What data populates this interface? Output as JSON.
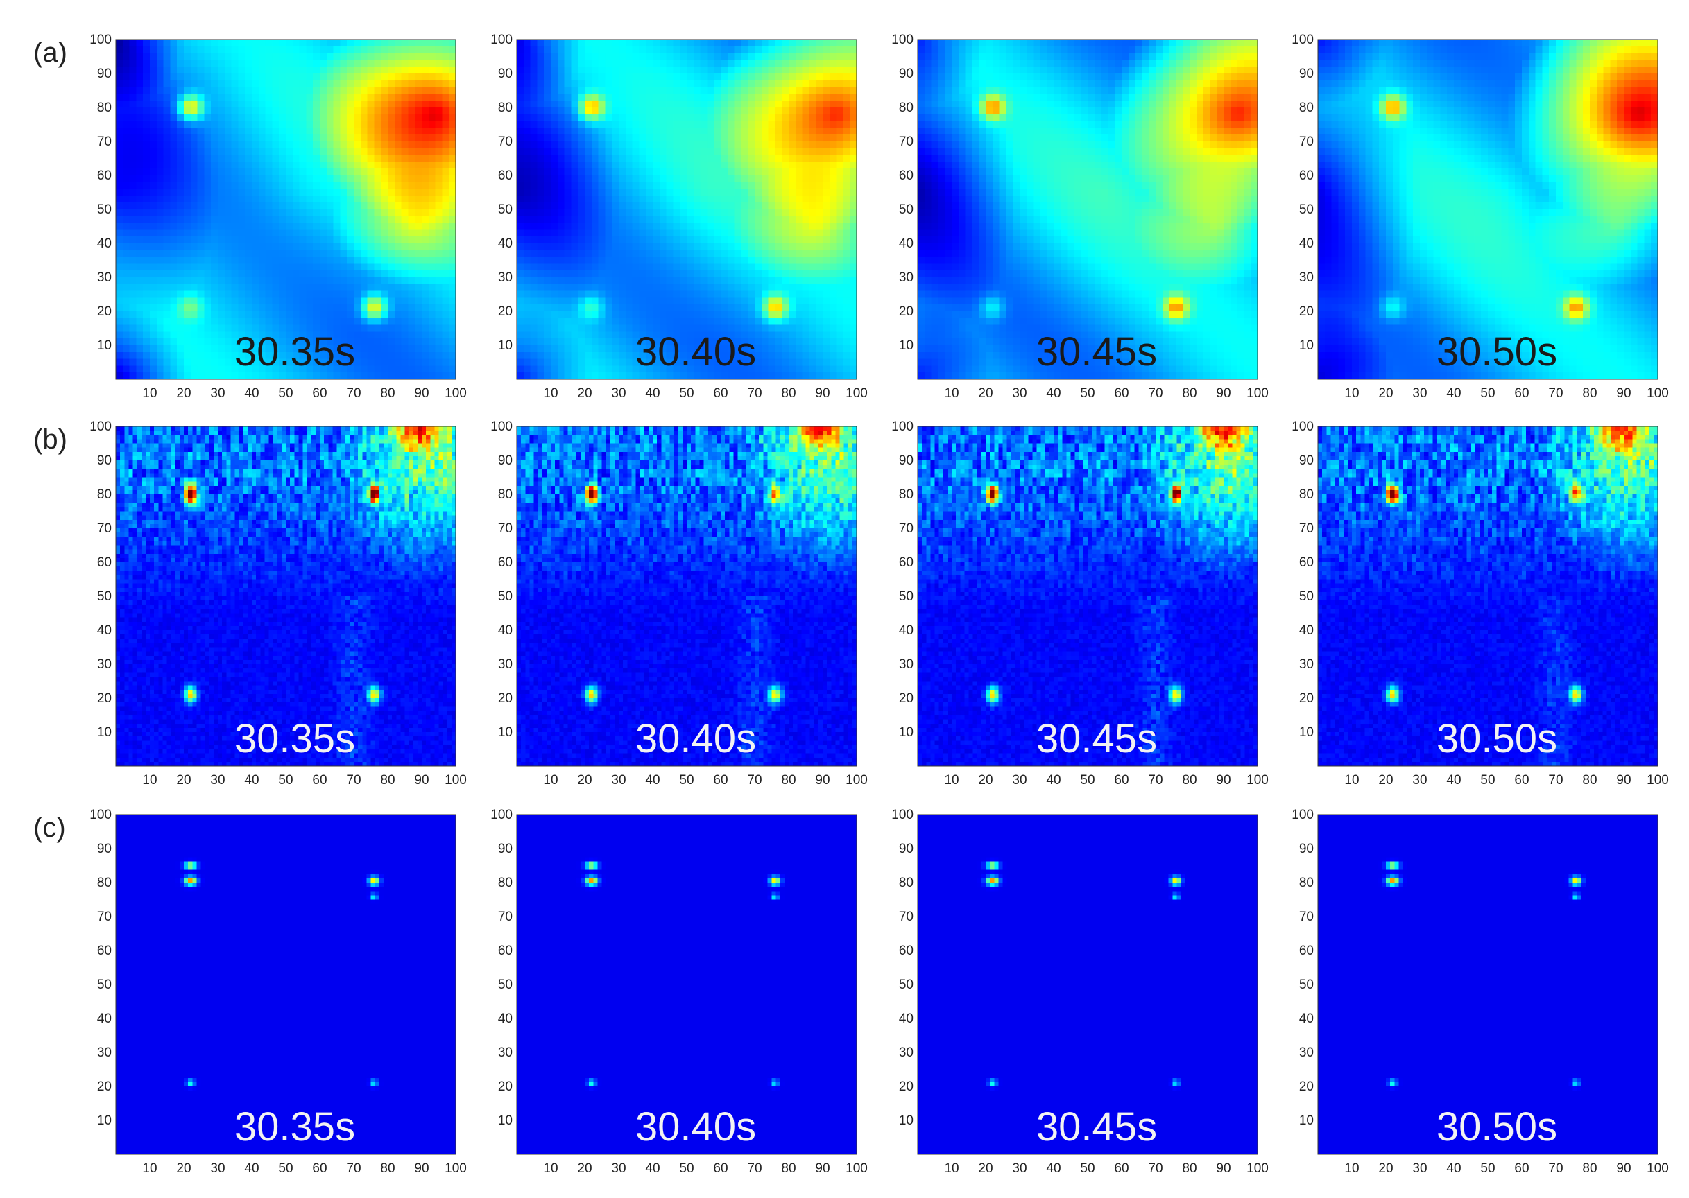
{
  "chart_data": {
    "type": "heatmap",
    "rows": [
      {
        "label": "(a)",
        "style": "smooth-field",
        "time_label_color": "#1a1a1a"
      },
      {
        "label": "(b)",
        "style": "speckle-field",
        "time_label_color": "#f2f2f2"
      },
      {
        "label": "(c)",
        "style": "sparse-points",
        "time_label_color": "#f2f2f2"
      }
    ],
    "time_labels": [
      "30.35s",
      "30.40s",
      "30.45s",
      "30.50s"
    ],
    "x_ticks": [
      10,
      20,
      30,
      40,
      50,
      60,
      70,
      80,
      90,
      100
    ],
    "y_ticks": [
      10,
      20,
      30,
      40,
      50,
      60,
      70,
      80,
      90,
      100
    ],
    "xlim": [
      0,
      100
    ],
    "ylim": [
      0,
      100
    ],
    "colormap": "jet",
    "grid": false,
    "hotspots": [
      [
        22,
        80
      ],
      [
        76,
        80
      ],
      [
        22,
        21
      ],
      [
        76,
        21
      ]
    ]
  }
}
